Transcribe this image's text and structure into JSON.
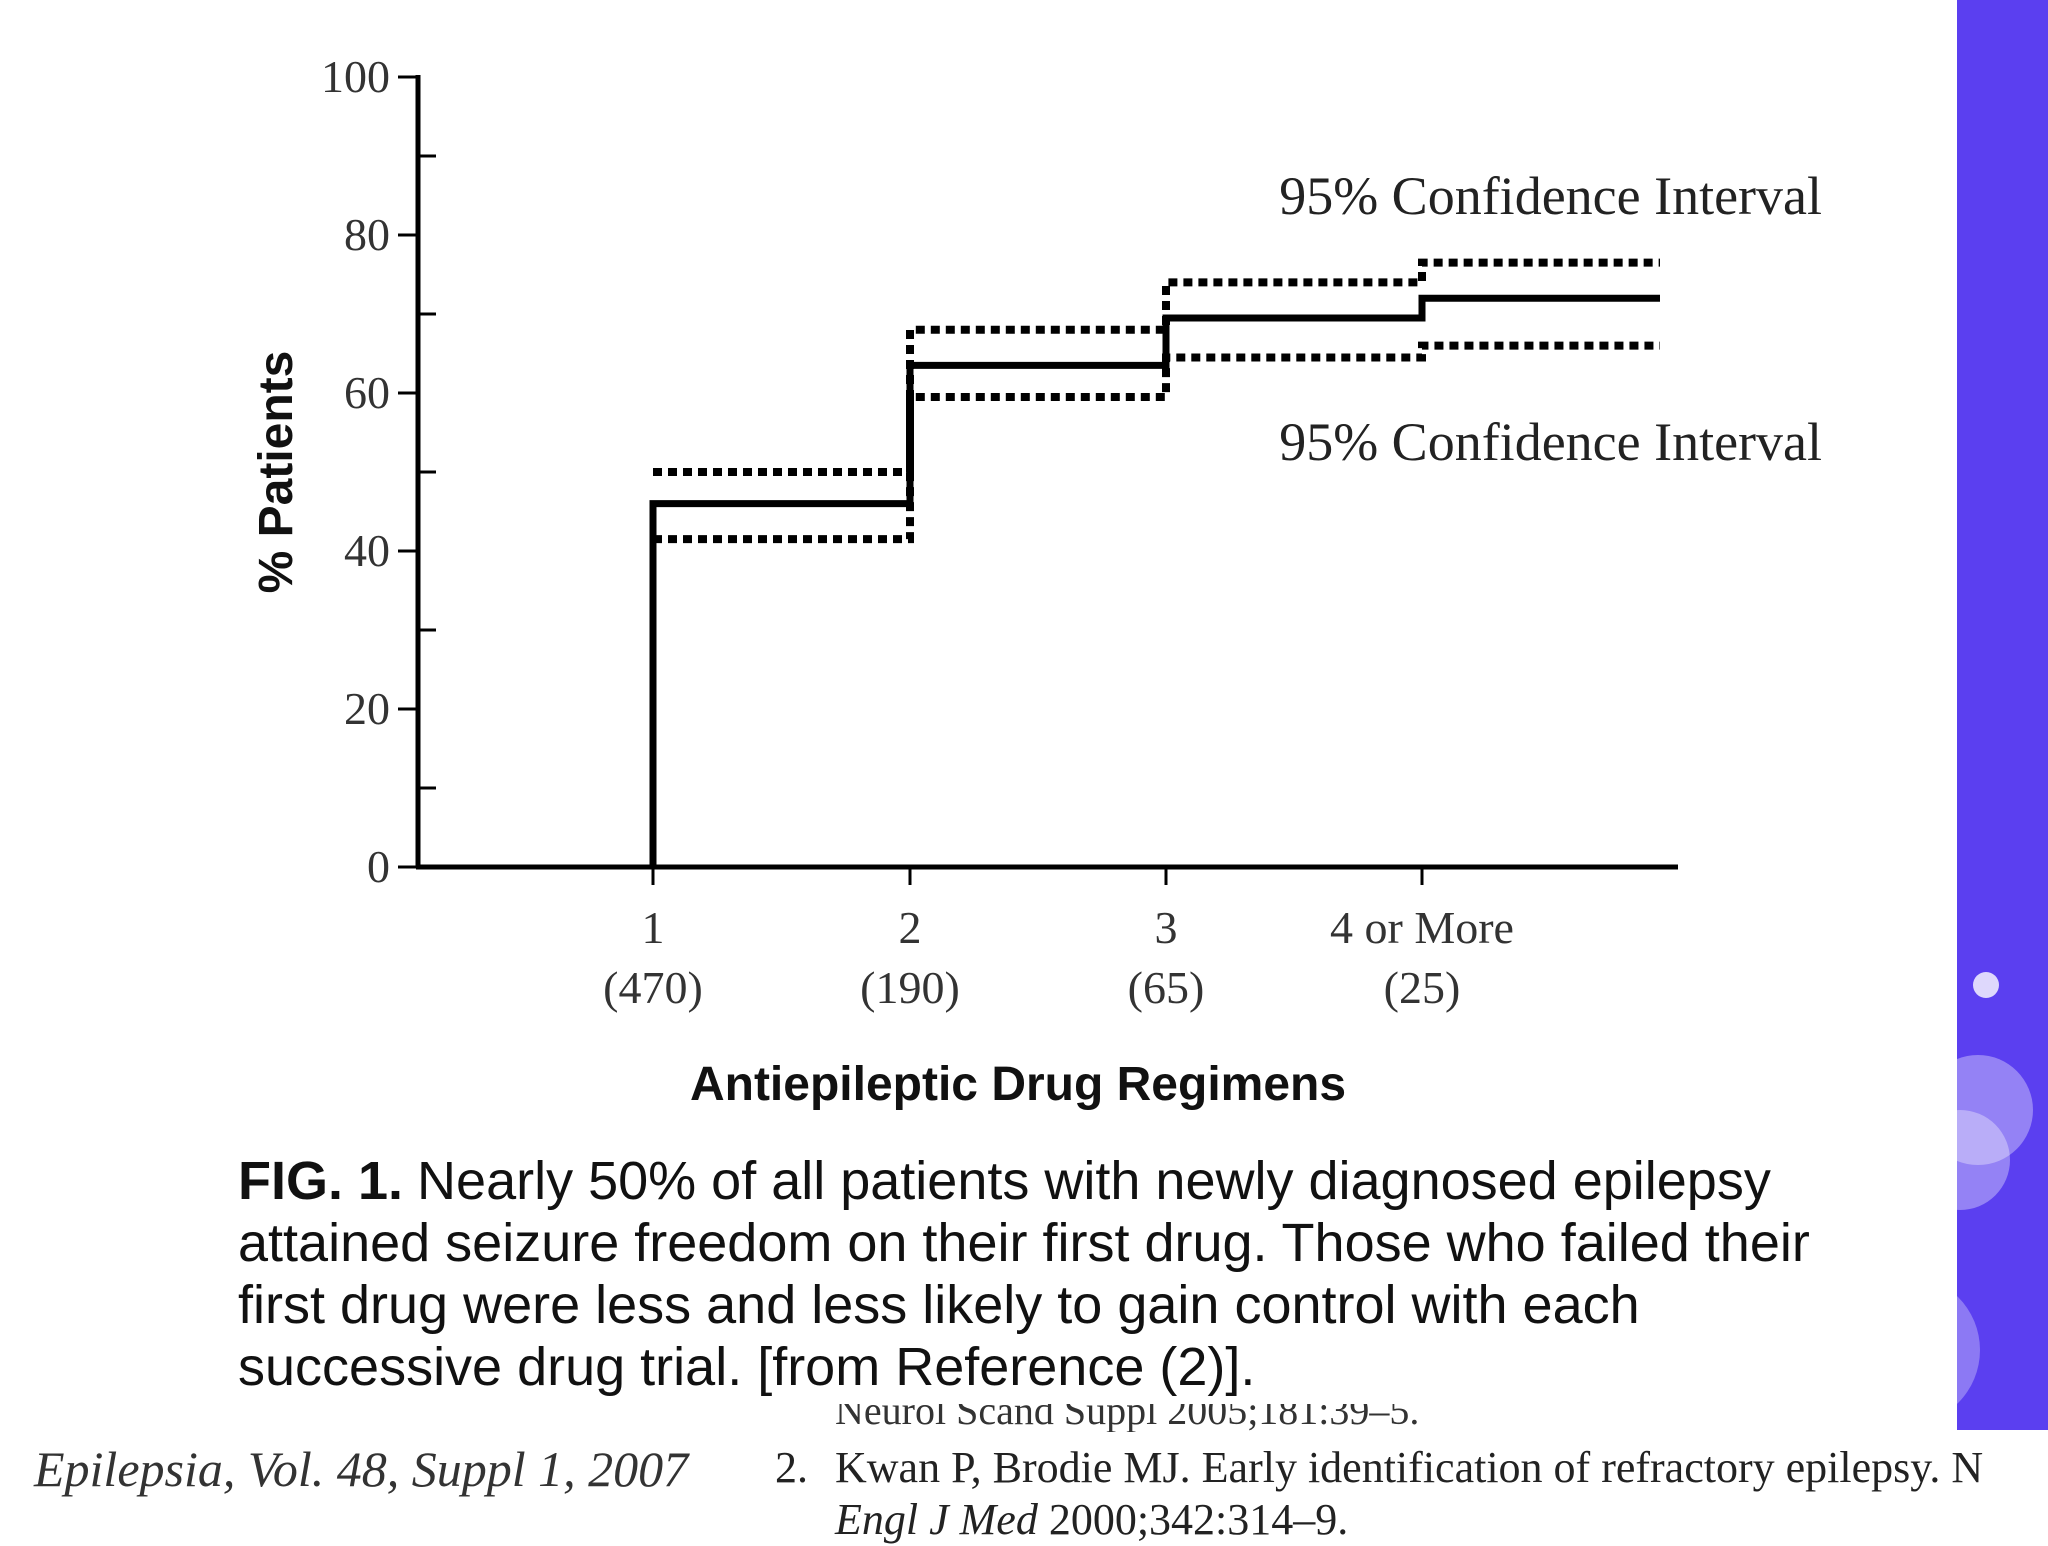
{
  "chart_data": {
    "type": "line",
    "subtype": "step",
    "title": "",
    "xlabel": "Antiepileptic Drug Regimens",
    "ylabel": "% Patients",
    "ylim": [
      0,
      100
    ],
    "yticks": [
      0,
      20,
      40,
      60,
      80,
      100
    ],
    "categories": [
      {
        "label": "1",
        "n": "(470)"
      },
      {
        "label": "2",
        "n": "(190)"
      },
      {
        "label": "3",
        "n": "(65)"
      },
      {
        "label": "4 or More",
        "n": "(25)"
      }
    ],
    "series": [
      {
        "values": [
          46,
          63.5,
          69.5,
          72
        ],
        "style": "solid"
      },
      {
        "values": [
          50,
          68,
          74,
          76.5
        ],
        "style": "dotted"
      },
      {
        "values": [
          41.5,
          59.5,
          64.5,
          66
        ],
        "style": "dotted"
      }
    ],
    "annotations": [
      {
        "text": "95% Confidence Interval",
        "near": "upper-confidence-line"
      },
      {
        "text": "95% Confidence Interval",
        "near": "lower-confidence-line"
      }
    ],
    "grid": false,
    "legend": "none"
  },
  "caption": {
    "label": "FIG. 1.",
    "text": "Nearly 50% of all patients with newly diagnosed epilepsy attained seizure freedom on their first drug. Those who failed their first drug were less and less likely to gain control with each successive drug trial. [from Reference (2)]."
  },
  "source": {
    "journal": "Epilepsia, Vol. 48, Suppl 1, 2007",
    "cut_text": "Neurol Scand Suppl 2005;181:39–5.",
    "ref_number": "2.",
    "ref_line1": "Kwan P, Brodie MJ. Early identification of refractory epilepsy. N",
    "ref_journal": "Engl J Med",
    "ref_tail": "2000;342:314–9."
  },
  "colors": {
    "ink": "#000000",
    "accent_band": "#5b3ff0",
    "bubble": "#ffffff"
  }
}
